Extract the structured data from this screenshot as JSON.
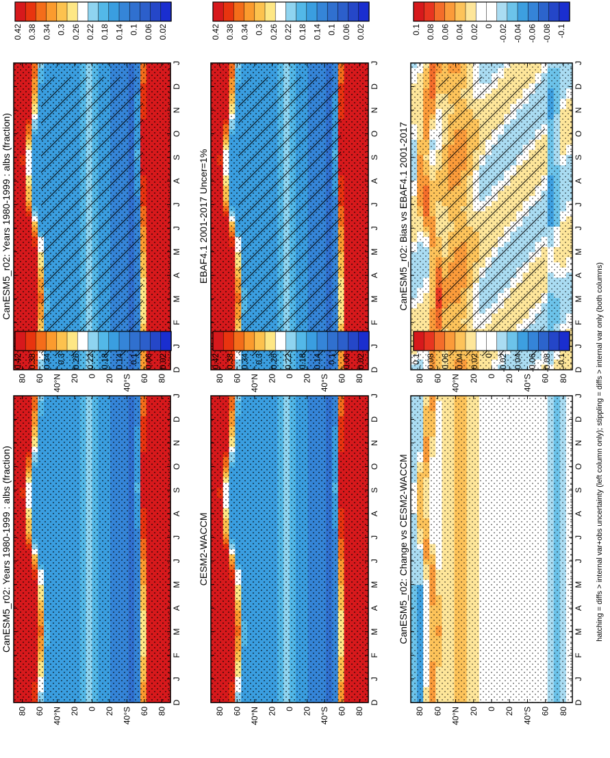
{
  "figure": {
    "footnote": "hatching = diffs > internal var+obs uncertainty (left column only); stippling = diffs > internal var only (both columns)"
  },
  "chart_data": [
    {
      "type": "heatmap",
      "title": "CanESM5_r02: Years 1980-1999 : albs (fraction)",
      "x_ticks": [
        "D",
        "J",
        "F",
        "M",
        "A",
        "M",
        "J",
        "J",
        "A",
        "S",
        "O",
        "N",
        "D",
        "J"
      ],
      "y_ticks": [
        "80",
        "60",
        "40°N",
        "20",
        "0",
        "20",
        "40°S",
        "60",
        "80"
      ],
      "overlay": "hatching+stippling",
      "colorbar": {
        "ticks": [
          "0.42",
          "0.38",
          "0.34",
          "0.3",
          "0.26",
          "0.22",
          "0.18",
          "0.14",
          "0.1",
          "0.06",
          "0.02"
        ]
      },
      "field": "albedo"
    },
    {
      "type": "heatmap",
      "title": "CanESM5_r02: Years 1980-1999 : albs (fraction)",
      "x_ticks": [
        "D",
        "J",
        "F",
        "M",
        "A",
        "M",
        "J",
        "J",
        "A",
        "S",
        "O",
        "N",
        "D",
        "J"
      ],
      "y_ticks": [
        "80",
        "60",
        "40°N",
        "20",
        "0",
        "20",
        "40°S",
        "60",
        "80"
      ],
      "overlay": "stippling",
      "colorbar": {
        "ticks": [
          "0.42",
          "0.38",
          "0.34",
          "0.3",
          "0.26",
          "0.22",
          "0.18",
          "0.14",
          "0.1",
          "0.06",
          "0.02"
        ]
      },
      "field": "albedo"
    },
    {
      "type": "heatmap",
      "title": "EBAF4.1 2001-2017 Uncer=1%",
      "x_ticks": [
        "D",
        "J",
        "F",
        "M",
        "A",
        "M",
        "J",
        "J",
        "A",
        "S",
        "O",
        "N",
        "D",
        "J"
      ],
      "y_ticks": [
        "80",
        "60",
        "40°N",
        "20",
        "0",
        "20",
        "40°S",
        "60",
        "80"
      ],
      "overlay": "hatching+stippling",
      "colorbar": {
        "ticks": [
          "0.42",
          "0.38",
          "0.34",
          "0.3",
          "0.26",
          "0.22",
          "0.18",
          "0.14",
          "0.1",
          "0.06",
          "0.02"
        ]
      },
      "field": "albedo"
    },
    {
      "type": "heatmap",
      "title": "CESM2-WACCM",
      "x_ticks": [
        "D",
        "J",
        "F",
        "M",
        "A",
        "M",
        "J",
        "J",
        "A",
        "S",
        "O",
        "N",
        "D",
        "J"
      ],
      "y_ticks": [
        "80",
        "60",
        "40°N",
        "20",
        "0",
        "20",
        "40°S",
        "60",
        "80"
      ],
      "overlay": "stippling",
      "colorbar": {
        "ticks": [
          "0.42",
          "0.38",
          "0.34",
          "0.3",
          "0.26",
          "0.22",
          "0.18",
          "0.14",
          "0.1",
          "0.06",
          "0.02"
        ]
      },
      "field": "albedo"
    },
    {
      "type": "heatmap",
      "title": "CanESM5_r02: Bias vs EBAF4.1 2001-2017",
      "x_ticks": [
        "D",
        "J",
        "F",
        "M",
        "A",
        "M",
        "J",
        "J",
        "A",
        "S",
        "O",
        "N",
        "D",
        "J"
      ],
      "y_ticks": [
        "80",
        "60",
        "40°N",
        "20",
        "0",
        "20",
        "40°S",
        "60",
        "80"
      ],
      "overlay": "hatching+stippling",
      "colorbar": {
        "ticks": [
          "0.1",
          "0.08",
          "0.06",
          "0.04",
          "0.02",
          "0",
          "-0.02",
          "-0.04",
          "-0.06",
          "-0.08",
          "-0.1"
        ]
      },
      "field": "bias"
    },
    {
      "type": "heatmap",
      "title": "CanESM5_r02: Change vs CESM2-WACCM",
      "x_ticks": [
        "D",
        "J",
        "F",
        "M",
        "A",
        "M",
        "J",
        "J",
        "A",
        "S",
        "O",
        "N",
        "D",
        "J"
      ],
      "y_ticks": [
        "80",
        "60",
        "40°N",
        "20",
        "0",
        "20",
        "40°S",
        "60",
        "80"
      ],
      "overlay": "stippling",
      "colorbar": {
        "ticks": [
          "0.1",
          "0.08",
          "0.06",
          "0.04",
          "0.02",
          "0",
          "-0.02",
          "-0.04",
          "-0.06",
          "-0.08",
          "-0.1"
        ]
      },
      "field": "change"
    }
  ],
  "palettes": {
    "albedo": [
      "#d7191c",
      "#e8340f",
      "#f46d1a",
      "#fb9b2e",
      "#fdc24e",
      "#fee785",
      "#ffffff",
      "#8fd4f0",
      "#53b8e8",
      "#3a9ee0",
      "#3585d8",
      "#3070cf",
      "#2c5fcb",
      "#2547c8",
      "#1a2ecf"
    ],
    "anomaly": [
      "#d7191c",
      "#e83520",
      "#f46d2a",
      "#fb9b3a",
      "#fdc35a",
      "#fee69a",
      "#ffffff",
      "#ffffff",
      "#aadcf2",
      "#6cc3ea",
      "#3d9fe0",
      "#3584d8",
      "#2c64cc",
      "#2446c8",
      "#1a2ecf"
    ]
  }
}
